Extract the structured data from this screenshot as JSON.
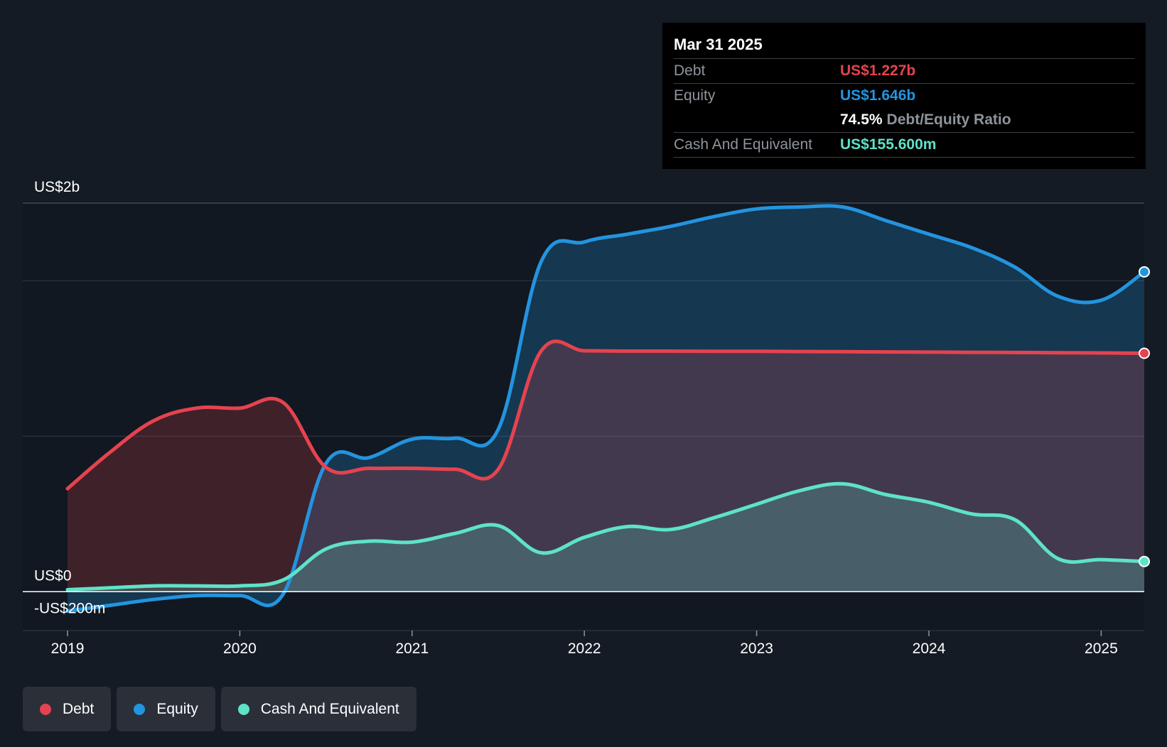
{
  "chart_data": {
    "type": "area",
    "x_unit": "year",
    "ylim": [
      -200,
      2000
    ],
    "y_unit": "US$m",
    "y_tick_labels": [
      {
        "value": 2000,
        "label": "US$2b"
      },
      {
        "value": 0,
        "label": "US$0"
      },
      {
        "value": -200,
        "label": "-US$200m"
      }
    ],
    "x_tick_labels": [
      "2019",
      "2020",
      "2021",
      "2022",
      "2023",
      "2024",
      "2025"
    ],
    "x_tick_values": [
      2019,
      2020,
      2021,
      2022,
      2023,
      2024,
      2025
    ],
    "xlim": [
      2018.74,
      2025.25
    ],
    "grid": true,
    "series": [
      {
        "name": "Debt",
        "color": "#e5434f",
        "values": [
          [
            2019.0,
            530
          ],
          [
            2019.25,
            720
          ],
          [
            2019.5,
            880
          ],
          [
            2019.75,
            945
          ],
          [
            2020.0,
            945
          ],
          [
            2020.25,
            975
          ],
          [
            2020.5,
            640
          ],
          [
            2020.75,
            635
          ],
          [
            2021.0,
            635
          ],
          [
            2021.25,
            630
          ],
          [
            2021.5,
            630
          ],
          [
            2021.75,
            1240
          ],
          [
            2022.0,
            1240
          ],
          [
            2022.25,
            1238
          ],
          [
            2022.5,
            1238
          ],
          [
            2022.75,
            1237
          ],
          [
            2023.0,
            1237
          ],
          [
            2023.25,
            1236
          ],
          [
            2023.5,
            1235
          ],
          [
            2023.75,
            1234
          ],
          [
            2024.0,
            1233
          ],
          [
            2024.25,
            1232
          ],
          [
            2024.5,
            1231
          ],
          [
            2024.75,
            1230
          ],
          [
            2025.0,
            1229
          ],
          [
            2025.25,
            1227
          ]
        ]
      },
      {
        "name": "Equity",
        "color": "#2394df",
        "values": [
          [
            2019.0,
            -100
          ],
          [
            2019.25,
            -70
          ],
          [
            2019.5,
            -40
          ],
          [
            2019.75,
            -20
          ],
          [
            2020.0,
            -20
          ],
          [
            2020.25,
            -15
          ],
          [
            2020.5,
            660
          ],
          [
            2020.75,
            690
          ],
          [
            2021.0,
            785
          ],
          [
            2021.25,
            790
          ],
          [
            2021.5,
            835
          ],
          [
            2021.75,
            1700
          ],
          [
            2022.0,
            1800
          ],
          [
            2022.25,
            1840
          ],
          [
            2022.5,
            1880
          ],
          [
            2022.75,
            1930
          ],
          [
            2023.0,
            1970
          ],
          [
            2023.25,
            1980
          ],
          [
            2023.5,
            1980
          ],
          [
            2023.75,
            1910
          ],
          [
            2024.0,
            1840
          ],
          [
            2024.25,
            1770
          ],
          [
            2024.5,
            1670
          ],
          [
            2024.75,
            1520
          ],
          [
            2025.0,
            1500
          ],
          [
            2025.25,
            1646
          ]
        ]
      },
      {
        "name": "Cash And Equivalent",
        "color": "#5ee2c8",
        "values": [
          [
            2019.0,
            10
          ],
          [
            2019.25,
            20
          ],
          [
            2019.5,
            30
          ],
          [
            2019.75,
            30
          ],
          [
            2020.0,
            30
          ],
          [
            2020.25,
            60
          ],
          [
            2020.5,
            220
          ],
          [
            2020.75,
            260
          ],
          [
            2021.0,
            255
          ],
          [
            2021.25,
            300
          ],
          [
            2021.5,
            340
          ],
          [
            2021.75,
            200
          ],
          [
            2022.0,
            280
          ],
          [
            2022.25,
            335
          ],
          [
            2022.5,
            320
          ],
          [
            2022.75,
            380
          ],
          [
            2023.0,
            450
          ],
          [
            2023.25,
            520
          ],
          [
            2023.5,
            555
          ],
          [
            2023.75,
            500
          ],
          [
            2024.0,
            460
          ],
          [
            2024.25,
            400
          ],
          [
            2024.5,
            370
          ],
          [
            2024.75,
            170
          ],
          [
            2025.0,
            165
          ],
          [
            2025.25,
            155.6
          ]
        ]
      }
    ]
  },
  "tooltip": {
    "date": "Mar 31 2025",
    "debt_label": "Debt",
    "debt_value": "US$1.227b",
    "equity_label": "Equity",
    "equity_value": "US$1.646b",
    "ratio_value": "74.5%",
    "ratio_label": "Debt/Equity Ratio",
    "cash_label": "Cash And Equivalent",
    "cash_value": "US$155.600m"
  },
  "legend": {
    "items": [
      {
        "label": "Debt",
        "color": "#e5434f"
      },
      {
        "label": "Equity",
        "color": "#2394df"
      },
      {
        "label": "Cash And Equivalent",
        "color": "#5ee2c8"
      }
    ]
  }
}
